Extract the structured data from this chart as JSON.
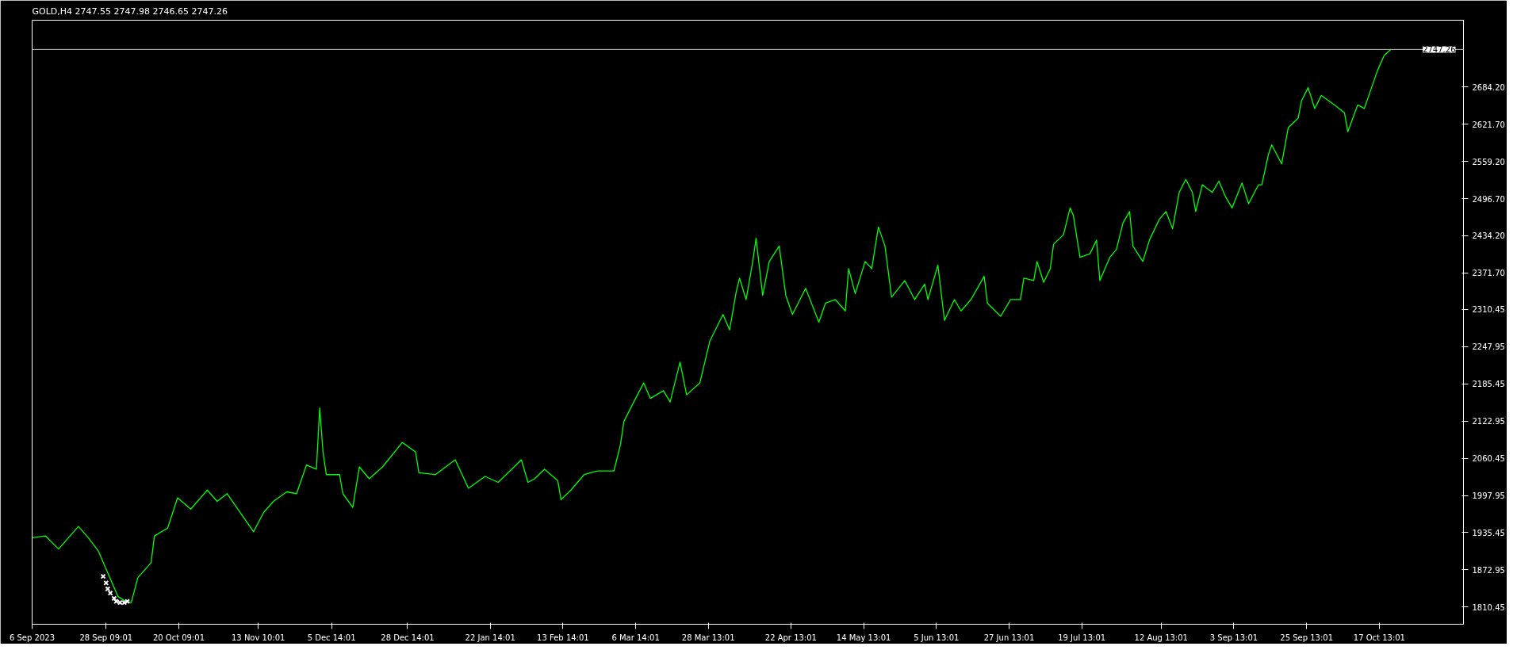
{
  "chart_data": {
    "type": "line",
    "title": "GOLD,H4  2747.55 2747.98 2746.65 2747.26",
    "xlim": [
      "2023-09-06",
      "2024-11-12"
    ],
    "ylim": [
      1781.6,
      2796.4
    ],
    "xticks": [
      {
        "value": "2023-09-06",
        "label": "6 Sep 2023"
      },
      {
        "value": "2023-09-28T09:01",
        "label": "28 Sep 09:01"
      },
      {
        "value": "2023-10-20T09:01",
        "label": "20 Oct 09:01"
      },
      {
        "value": "2023-11-13T10:01",
        "label": "13 Nov 10:01"
      },
      {
        "value": "2023-12-05T14:01",
        "label": "5 Dec 14:01"
      },
      {
        "value": "2023-12-28T14:01",
        "label": "28 Dec 14:01"
      },
      {
        "value": "2024-01-22T14:01",
        "label": "22 Jan 14:01"
      },
      {
        "value": "2024-02-13T14:01",
        "label": "13 Feb 14:01"
      },
      {
        "value": "2024-03-06T14:01",
        "label": "6 Mar 14:01"
      },
      {
        "value": "2024-03-28T13:01",
        "label": "28 Mar 13:01"
      },
      {
        "value": "2024-04-22T13:01",
        "label": "22 Apr 13:01"
      },
      {
        "value": "2024-05-14T13:01",
        "label": "14 May 13:01"
      },
      {
        "value": "2024-06-05T13:01",
        "label": "5 Jun 13:01"
      },
      {
        "value": "2024-06-27T13:01",
        "label": "27 Jun 13:01"
      },
      {
        "value": "2024-07-19T13:01",
        "label": "19 Jul 13:01"
      },
      {
        "value": "2024-08-12T13:01",
        "label": "12 Aug 13:01"
      },
      {
        "value": "2024-09-03T13:01",
        "label": "3 Sep 13:01"
      },
      {
        "value": "2024-09-25T13:01",
        "label": "25 Sep 13:01"
      },
      {
        "value": "2024-10-17T13:01",
        "label": "17 Oct 13:01"
      }
    ],
    "yticks": [
      {
        "value": 1810.45,
        "label": "1810.45"
      },
      {
        "value": 1872.95,
        "label": "1872.95"
      },
      {
        "value": 1935.45,
        "label": "1935.45"
      },
      {
        "value": 1997.95,
        "label": "1997.95"
      },
      {
        "value": 2060.45,
        "label": "2060.45"
      },
      {
        "value": 2122.95,
        "label": "2122.95"
      },
      {
        "value": 2185.45,
        "label": "2185.45"
      },
      {
        "value": 2247.95,
        "label": "2247.95"
      },
      {
        "value": 2310.45,
        "label": "2310.45"
      },
      {
        "value": 2371.7,
        "label": "2371.70"
      },
      {
        "value": 2434.2,
        "label": "2434.20"
      },
      {
        "value": 2496.7,
        "label": "2496.70"
      },
      {
        "value": 2559.2,
        "label": "2559.20"
      },
      {
        "value": 2621.7,
        "label": "2621.70"
      },
      {
        "value": 2684.2,
        "label": "2684.20"
      }
    ],
    "ref_lines": [
      {
        "axis": "y",
        "value": 2747.26,
        "label": "2747.26",
        "color": "#c0c0c0"
      }
    ],
    "series": [
      {
        "color": "#00ff00",
        "x": [
          "2023-09-06",
          "2023-09-10",
          "2023-09-14",
          "2023-09-20",
          "2023-09-23",
          "2023-09-26",
          "2023-09-28",
          "2023-10-02",
          "2023-10-04",
          "2023-10-06",
          "2023-10-08",
          "2023-10-12",
          "2023-10-13",
          "2023-10-17",
          "2023-10-20",
          "2023-10-24",
          "2023-10-29",
          "2023-11-01",
          "2023-11-04",
          "2023-11-08",
          "2023-11-12",
          "2023-11-15",
          "2023-11-18",
          "2023-11-22",
          "2023-11-25",
          "2023-11-28",
          "2023-12-01",
          "2023-12-02",
          "2023-12-03",
          "2023-12-04",
          "2023-12-08",
          "2023-12-09",
          "2023-12-12",
          "2023-12-14",
          "2023-12-17",
          "2023-12-21",
          "2023-12-27",
          "2023-12-31",
          "2024-01-01",
          "2024-01-06",
          "2024-01-12",
          "2024-01-16",
          "2024-01-21",
          "2024-01-25",
          "2024-02-01",
          "2024-02-03",
          "2024-02-05",
          "2024-02-08",
          "2024-02-12",
          "2024-02-13",
          "2024-02-16",
          "2024-02-20",
          "2024-02-24",
          "2024-02-29",
          "2024-03-02",
          "2024-03-03",
          "2024-03-06",
          "2024-03-09",
          "2024-03-11",
          "2024-03-15",
          "2024-03-17",
          "2024-03-20",
          "2024-03-22",
          "2024-03-26",
          "2024-03-29",
          "2024-04-02",
          "2024-04-04",
          "2024-04-06",
          "2024-04-07",
          "2024-04-09",
          "2024-04-11",
          "2024-04-12",
          "2024-04-14",
          "2024-04-16",
          "2024-04-19",
          "2024-04-21",
          "2024-04-23",
          "2024-04-27",
          "2024-05-01",
          "2024-05-03",
          "2024-05-06",
          "2024-05-09",
          "2024-05-10",
          "2024-05-12",
          "2024-05-15",
          "2024-05-17",
          "2024-05-19",
          "2024-05-21",
          "2024-05-23",
          "2024-05-27",
          "2024-05-30",
          "2024-06-02",
          "2024-06-03",
          "2024-06-06",
          "2024-06-08",
          "2024-06-11",
          "2024-06-13",
          "2024-06-16",
          "2024-06-20",
          "2024-06-21",
          "2024-06-25",
          "2024-06-28",
          "2024-07-01",
          "2024-07-02",
          "2024-07-05",
          "2024-07-06",
          "2024-07-08",
          "2024-07-10",
          "2024-07-11",
          "2024-07-14",
          "2024-07-16",
          "2024-07-17",
          "2024-07-19",
          "2024-07-22",
          "2024-07-24",
          "2024-07-25",
          "2024-07-28",
          "2024-07-30",
          "2024-08-01",
          "2024-08-03",
          "2024-08-04",
          "2024-08-07",
          "2024-08-09",
          "2024-08-12",
          "2024-08-14",
          "2024-08-16",
          "2024-08-18",
          "2024-08-20",
          "2024-08-22",
          "2024-08-23",
          "2024-08-25",
          "2024-08-28",
          "2024-08-30",
          "2024-09-01",
          "2024-09-03",
          "2024-09-06",
          "2024-09-08",
          "2024-09-11",
          "2024-09-12",
          "2024-09-14",
          "2024-09-15",
          "2024-09-18",
          "2024-09-20",
          "2024-09-23",
          "2024-09-24",
          "2024-09-26",
          "2024-09-28",
          "2024-09-30",
          "2024-10-04",
          "2024-10-07",
          "2024-10-08",
          "2024-10-11",
          "2024-10-13",
          "2024-10-15",
          "2024-10-17",
          "2024-10-19",
          "2024-10-21"
        ],
        "values": [
          1927,
          1930,
          1908,
          1946,
          1927,
          1905,
          1879,
          1828,
          1821,
          1818,
          1860,
          1885,
          1930,
          1943,
          1994,
          1975,
          2007,
          1988,
          2001,
          1969,
          1937,
          1969,
          1988,
          2004,
          2001,
          2049,
          2042,
          2145,
          2071,
          2033,
          2033,
          2001,
          1978,
          2046,
          2026,
          2046,
          2087,
          2071,
          2036,
          2033,
          2058,
          2010,
          2030,
          2020,
          2058,
          2020,
          2026,
          2042,
          2023,
          1991,
          2007,
          2033,
          2039,
          2039,
          2084,
          2122,
          2155,
          2187,
          2161,
          2174,
          2155,
          2222,
          2167,
          2187,
          2257,
          2302,
          2276,
          2340,
          2363,
          2327,
          2391,
          2430,
          2334,
          2391,
          2417,
          2334,
          2302,
          2346,
          2289,
          2321,
          2327,
          2308,
          2379,
          2337,
          2391,
          2379,
          2449,
          2417,
          2331,
          2359,
          2327,
          2353,
          2327,
          2385,
          2292,
          2327,
          2308,
          2327,
          2366,
          2321,
          2299,
          2327,
          2327,
          2363,
          2359,
          2391,
          2356,
          2379,
          2420,
          2436,
          2481,
          2468,
          2398,
          2404,
          2427,
          2359,
          2398,
          2411,
          2456,
          2475,
          2417,
          2391,
          2427,
          2462,
          2475,
          2446,
          2507,
          2529,
          2507,
          2475,
          2520,
          2507,
          2526,
          2500,
          2481,
          2523,
          2488,
          2520,
          2520,
          2571,
          2587,
          2555,
          2616,
          2632,
          2661,
          2683,
          2648,
          2670,
          2654,
          2641,
          2609,
          2654,
          2648,
          2680,
          2712,
          2737,
          2747
        ]
      },
      {
        "type": "scatter",
        "color": "#ffffff",
        "marker": "cross",
        "x": [
          "2023-09-27T12:00",
          "2023-09-28T09:00",
          "2023-09-28T21:00",
          "2023-09-29T16:00",
          "2023-09-30T19:00",
          "2023-10-01T11:00",
          "2023-10-02T14:00",
          "2023-10-03T21:00",
          "2023-10-04T19:00"
        ],
        "values": [
          1862,
          1851,
          1841,
          1834,
          1825,
          1820,
          1818,
          1818,
          1820
        ]
      }
    ]
  }
}
